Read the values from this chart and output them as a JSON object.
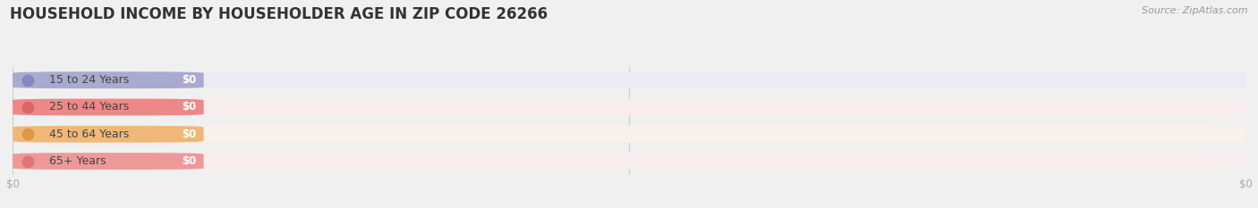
{
  "title": "HOUSEHOLD INCOME BY HOUSEHOLDER AGE IN ZIP CODE 26266",
  "source_text": "Source: ZipAtlas.com",
  "categories": [
    "15 to 24 Years",
    "25 to 44 Years",
    "45 to 64 Years",
    "65+ Years"
  ],
  "values": [
    0,
    0,
    0,
    0
  ],
  "bar_colors": [
    "#aaaad0",
    "#ee8888",
    "#f0b878",
    "#ee9999"
  ],
  "bar_bg_colors": [
    "#ebebf3",
    "#f8eded",
    "#f8f2ea",
    "#f8eded"
  ],
  "dot_colors": [
    "#8888c0",
    "#dd6666",
    "#e09848",
    "#dd7777"
  ],
  "background_color": "#f0f0f0",
  "title_fontsize": 12,
  "source_fontsize": 8,
  "label_fontsize": 9,
  "value_fontsize": 8.5,
  "tick_fontsize": 8.5,
  "tick_color": "#aaaaaa",
  "grid_color": "#cccccc",
  "label_color": "#555555",
  "title_color": "#333333"
}
